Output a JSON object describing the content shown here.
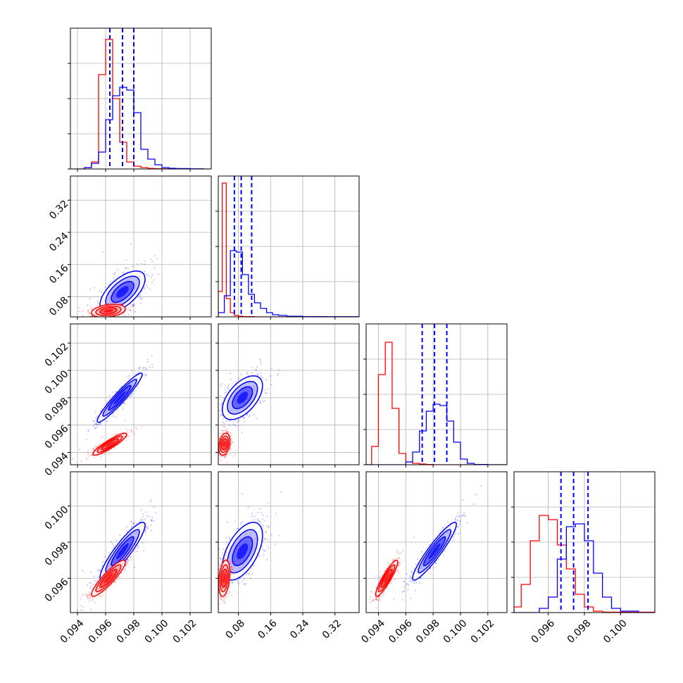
{
  "chart_data": {
    "type": "corner",
    "grid": true,
    "series": [
      {
        "name": "",
        "color": "#0000ff"
      },
      {
        "name": "",
        "color": "#ff0000"
      }
    ],
    "params": [
      {
        "range": [
          0.0935,
          0.1035
        ],
        "ticks": [
          "0.094",
          "0.096",
          "0.098",
          "0.100",
          "0.102"
        ],
        "tick_values": [
          0.094,
          0.096,
          0.098,
          0.1,
          0.102
        ]
      },
      {
        "range": [
          0.03,
          0.38
        ],
        "ticks": [
          "0.08",
          "0.16",
          "0.24",
          "0.32"
        ],
        "tick_values": [
          0.08,
          0.16,
          0.24,
          0.32
        ]
      },
      {
        "range": [
          0.0931,
          0.1034
        ],
        "ticks": [
          "0.094",
          "0.096",
          "0.098",
          "0.100",
          "0.102"
        ],
        "tick_values": [
          0.094,
          0.096,
          0.098,
          0.1,
          0.102
        ]
      },
      {
        "range": [
          0.0941,
          0.1019
        ],
        "ticks": [
          "0.096",
          "0.098",
          "0.100"
        ],
        "tick_values": [
          0.096,
          0.098,
          0.1
        ]
      }
    ],
    "diag_ylim": [
      [
        0,
        1
      ],
      [
        0,
        1
      ],
      [
        0,
        1
      ],
      [
        0,
        1
      ]
    ],
    "quantiles_blue": [
      [
        0.0963,
        0.0972,
        0.098
      ],
      [
        0.07,
        0.087,
        0.113
      ],
      [
        0.0972,
        0.0981,
        0.099
      ],
      [
        0.0967,
        0.0974,
        0.0982
      ]
    ],
    "hist_blue": [
      {
        "edges": [
          0.094,
          0.0945,
          0.095,
          0.0955,
          0.096,
          0.0965,
          0.097,
          0.0975,
          0.098,
          0.0985,
          0.099,
          0.0995,
          0.1,
          0.1005,
          0.101,
          0.102,
          0.103
        ],
        "values": [
          0,
          0.01,
          0.04,
          0.12,
          0.35,
          0.52,
          0.58,
          0.56,
          0.4,
          0.14,
          0.07,
          0.03,
          0.01,
          0.005,
          0.003,
          0.001
        ]
      },
      {
        "edges": [
          0.03,
          0.045,
          0.06,
          0.075,
          0.09,
          0.105,
          0.12,
          0.135,
          0.15,
          0.165,
          0.18,
          0.2,
          0.24,
          0.3,
          0.38
        ],
        "values": [
          0.03,
          0.15,
          0.47,
          0.46,
          0.3,
          0.16,
          0.1,
          0.06,
          0.03,
          0.015,
          0.01,
          0.004,
          0.002,
          0.001
        ]
      },
      {
        "edges": [
          0.0931,
          0.096,
          0.0965,
          0.097,
          0.0975,
          0.098,
          0.0985,
          0.099,
          0.0995,
          0.1,
          0.1005,
          0.101,
          0.102,
          0.1034
        ],
        "values": [
          0,
          0.02,
          0.09,
          0.24,
          0.38,
          0.43,
          0.42,
          0.31,
          0.16,
          0.04,
          0.01,
          0.002,
          0
        ]
      },
      {
        "edges": [
          0.0941,
          0.0955,
          0.096,
          0.0965,
          0.097,
          0.0975,
          0.098,
          0.0985,
          0.099,
          0.0995,
          0.1,
          0.101,
          0.1019
        ],
        "values": [
          0,
          0.03,
          0.11,
          0.38,
          0.61,
          0.63,
          0.51,
          0.28,
          0.11,
          0.03,
          0.01,
          0
        ]
      }
    ],
    "hist_red": [
      {
        "edges": [
          0.0935,
          0.0945,
          0.095,
          0.0955,
          0.096,
          0.0965,
          0.097,
          0.0975,
          0.098,
          0.0985,
          0.099,
          0.0995,
          0.1,
          0.1005,
          0.1035
        ],
        "values": [
          0,
          0.01,
          0.05,
          0.67,
          0.92,
          0.5,
          0.19,
          0.05,
          0.02,
          0.01,
          0.004,
          0.002,
          0.001,
          0
        ]
      },
      {
        "edges": [
          0.03,
          0.04,
          0.05,
          0.06,
          0.07,
          0.08,
          0.09,
          0.12,
          0.38
        ],
        "values": [
          0.18,
          0.95,
          0.13,
          0.03,
          0.01,
          0.005,
          0.002,
          0
        ]
      },
      {
        "edges": [
          0.0931,
          0.0935,
          0.094,
          0.0945,
          0.095,
          0.0955,
          0.096,
          0.0965,
          0.097,
          0.0975,
          0.098,
          0.1034
        ],
        "values": [
          0,
          0.13,
          0.64,
          0.87,
          0.4,
          0.08,
          0.02,
          0.01,
          0.005,
          0.002,
          0
        ]
      },
      {
        "edges": [
          0.0941,
          0.0945,
          0.095,
          0.0955,
          0.096,
          0.0965,
          0.097,
          0.0975,
          0.098,
          0.0985,
          0.099,
          0.1019
        ],
        "values": [
          0.04,
          0.2,
          0.51,
          0.69,
          0.66,
          0.48,
          0.31,
          0.13,
          0.04,
          0.01,
          0.003
        ]
      }
    ],
    "blue_pairs": [
      {
        "row": 1,
        "col": 0,
        "mean": [
          0.0972,
          0.092
        ],
        "sd": [
          0.0008,
          0.026
        ],
        "corr": 0.62,
        "n": 650
      },
      {
        "row": 2,
        "col": 0,
        "mean": [
          0.097,
          0.098
        ],
        "sd": [
          0.0008,
          0.0009
        ],
        "corr": 0.95,
        "n": 650
      },
      {
        "row": 2,
        "col": 1,
        "mean": [
          0.09,
          0.098
        ],
        "sd": [
          0.025,
          0.0008
        ],
        "corr": 0.55,
        "n": 650
      },
      {
        "row": 3,
        "col": 0,
        "mean": [
          0.0972,
          0.0975
        ],
        "sd": [
          0.0008,
          0.0008
        ],
        "corr": 0.9,
        "n": 650
      },
      {
        "row": 3,
        "col": 1,
        "mean": [
          0.09,
          0.0975
        ],
        "sd": [
          0.025,
          0.0008
        ],
        "corr": 0.55,
        "n": 650
      },
      {
        "row": 3,
        "col": 2,
        "mean": [
          0.0981,
          0.0975
        ],
        "sd": [
          0.0008,
          0.0008
        ],
        "corr": 0.93,
        "n": 650
      }
    ],
    "red_pairs": [
      {
        "row": 1,
        "col": 0,
        "mean": [
          0.0962,
          0.045
        ],
        "sd": [
          0.0006,
          0.008
        ],
        "corr": 0.3,
        "n": 550
      },
      {
        "row": 2,
        "col": 0,
        "mean": [
          0.0963,
          0.0946
        ],
        "sd": [
          0.0006,
          0.0004
        ],
        "corr": 0.9,
        "n": 550
      },
      {
        "row": 2,
        "col": 1,
        "mean": [
          0.045,
          0.0946
        ],
        "sd": [
          0.007,
          0.0004
        ],
        "corr": 0.3,
        "n": 550
      },
      {
        "row": 3,
        "col": 0,
        "mean": [
          0.0962,
          0.096
        ],
        "sd": [
          0.0006,
          0.0005
        ],
        "corr": 0.9,
        "n": 550
      },
      {
        "row": 3,
        "col": 1,
        "mean": [
          0.045,
          0.096
        ],
        "sd": [
          0.007,
          0.0005
        ],
        "corr": 0.3,
        "n": 550
      },
      {
        "row": 3,
        "col": 2,
        "mean": [
          0.0946,
          0.096
        ],
        "sd": [
          0.0004,
          0.0005
        ],
        "corr": 0.9,
        "n": 550
      }
    ]
  }
}
